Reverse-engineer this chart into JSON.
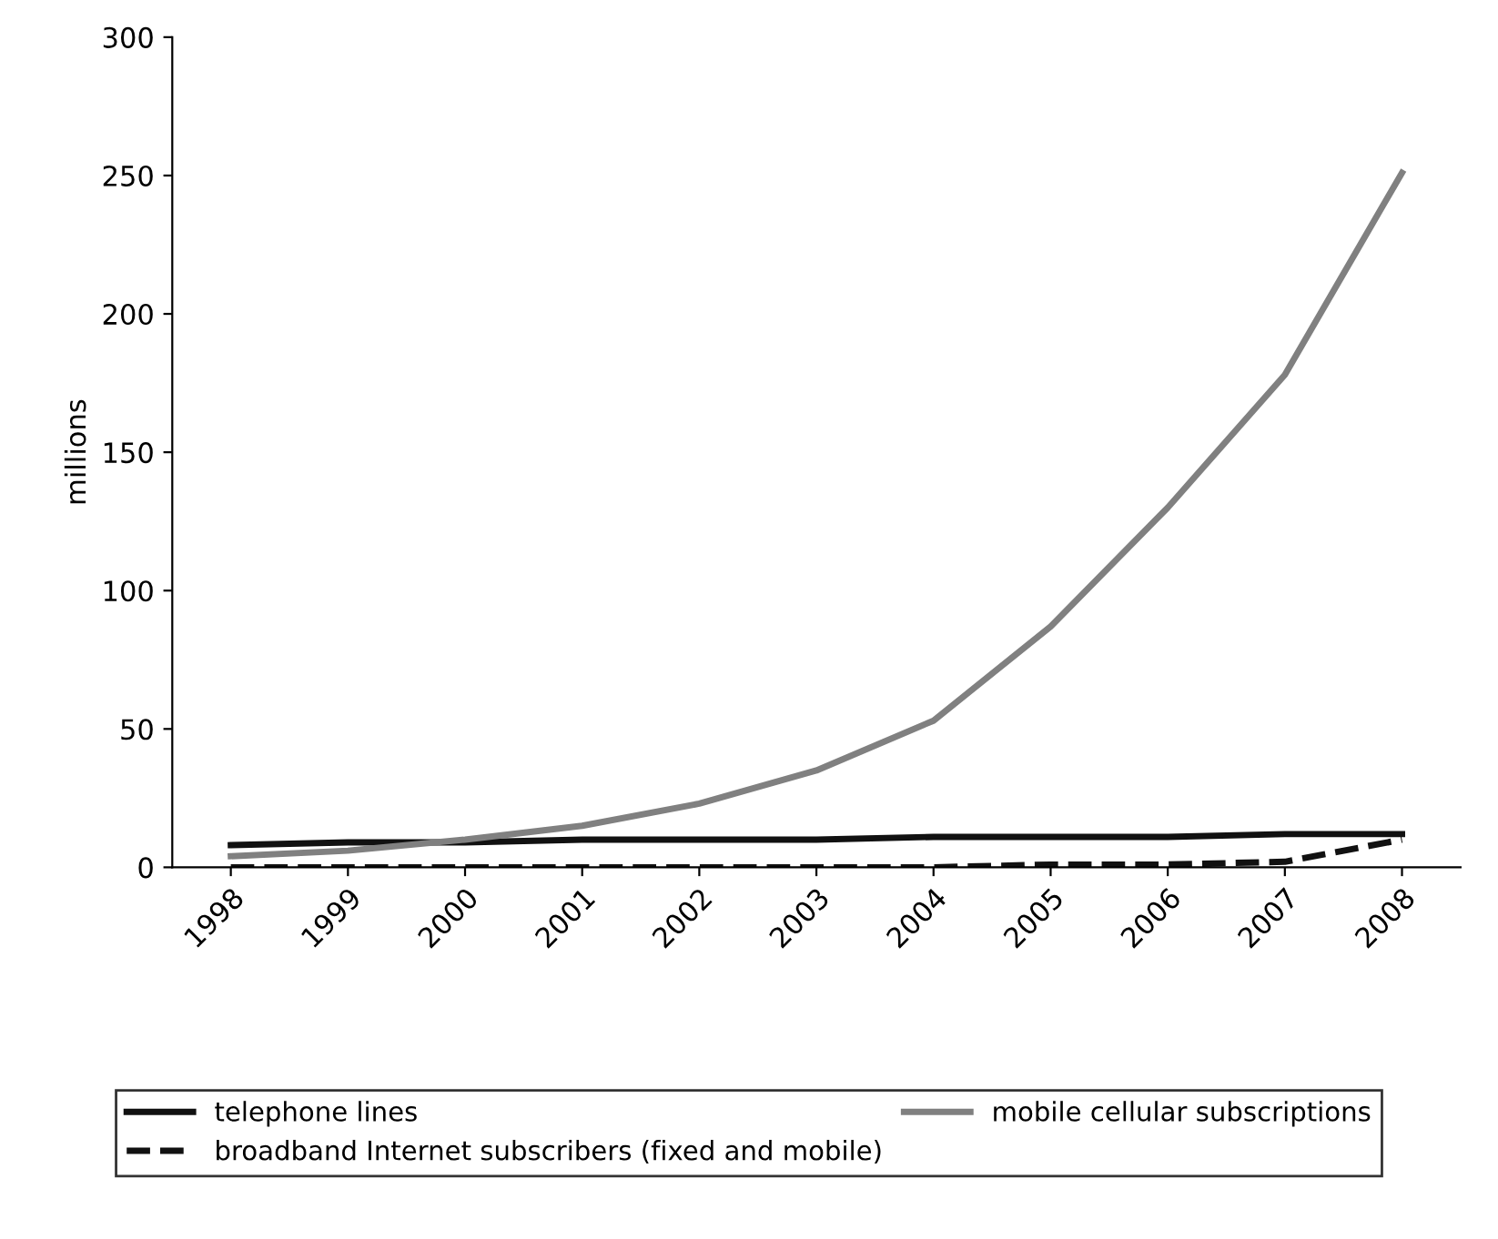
{
  "chart_data": {
    "type": "line",
    "ylabel": "millions",
    "categories": [
      "1998",
      "1999",
      "2000",
      "2001",
      "2002",
      "2003",
      "2004",
      "2005",
      "2006",
      "2007",
      "2008"
    ],
    "series": [
      {
        "name": "telephone lines",
        "color": "#111111",
        "values": [
          8,
          9,
          9,
          10,
          10,
          10,
          11,
          11,
          11,
          12,
          12
        ]
      },
      {
        "name": "mobile cellular subscriptions",
        "color": "#808080",
        "values": [
          4,
          6,
          10,
          15,
          23,
          35,
          53,
          87,
          130,
          178,
          251
        ]
      },
      {
        "name": "broadband Internet subscribers (fixed and mobile)",
        "color": "#111111",
        "line_style": "dashed",
        "values": [
          0,
          0,
          0,
          0,
          0,
          0,
          0,
          1,
          1,
          2,
          10
        ]
      }
    ],
    "ylim": [
      0,
      300
    ],
    "yticks": [
      0,
      50,
      100,
      150,
      200,
      250,
      300
    ],
    "grid": false,
    "legend": "bottom",
    "marker": "none"
  }
}
